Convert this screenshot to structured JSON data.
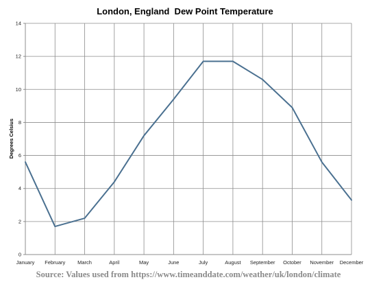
{
  "chart_data": {
    "type": "line",
    "title": "London, England  Dew Point Temperature",
    "ylabel": "Degrees Celsius",
    "xlabel": "",
    "categories": [
      "January",
      "February",
      "March",
      "April",
      "May",
      "June",
      "July",
      "August",
      "September",
      "October",
      "November",
      "December"
    ],
    "series": [
      {
        "values": [
          5.6,
          1.7,
          2.2,
          4.4,
          7.2,
          9.4,
          11.7,
          11.7,
          10.6,
          8.9,
          5.6,
          3.3
        ]
      }
    ],
    "ylim": [
      0,
      14
    ],
    "yticks": [
      0,
      2,
      4,
      6,
      8,
      10,
      12,
      14
    ],
    "grid": true,
    "legend": "none",
    "colors": {
      "line": "#4a7090",
      "grid": "#8c8c8c"
    }
  },
  "source_note": "Source: Values used from https://www.timeanddate.com/weather/uk/london/climate"
}
